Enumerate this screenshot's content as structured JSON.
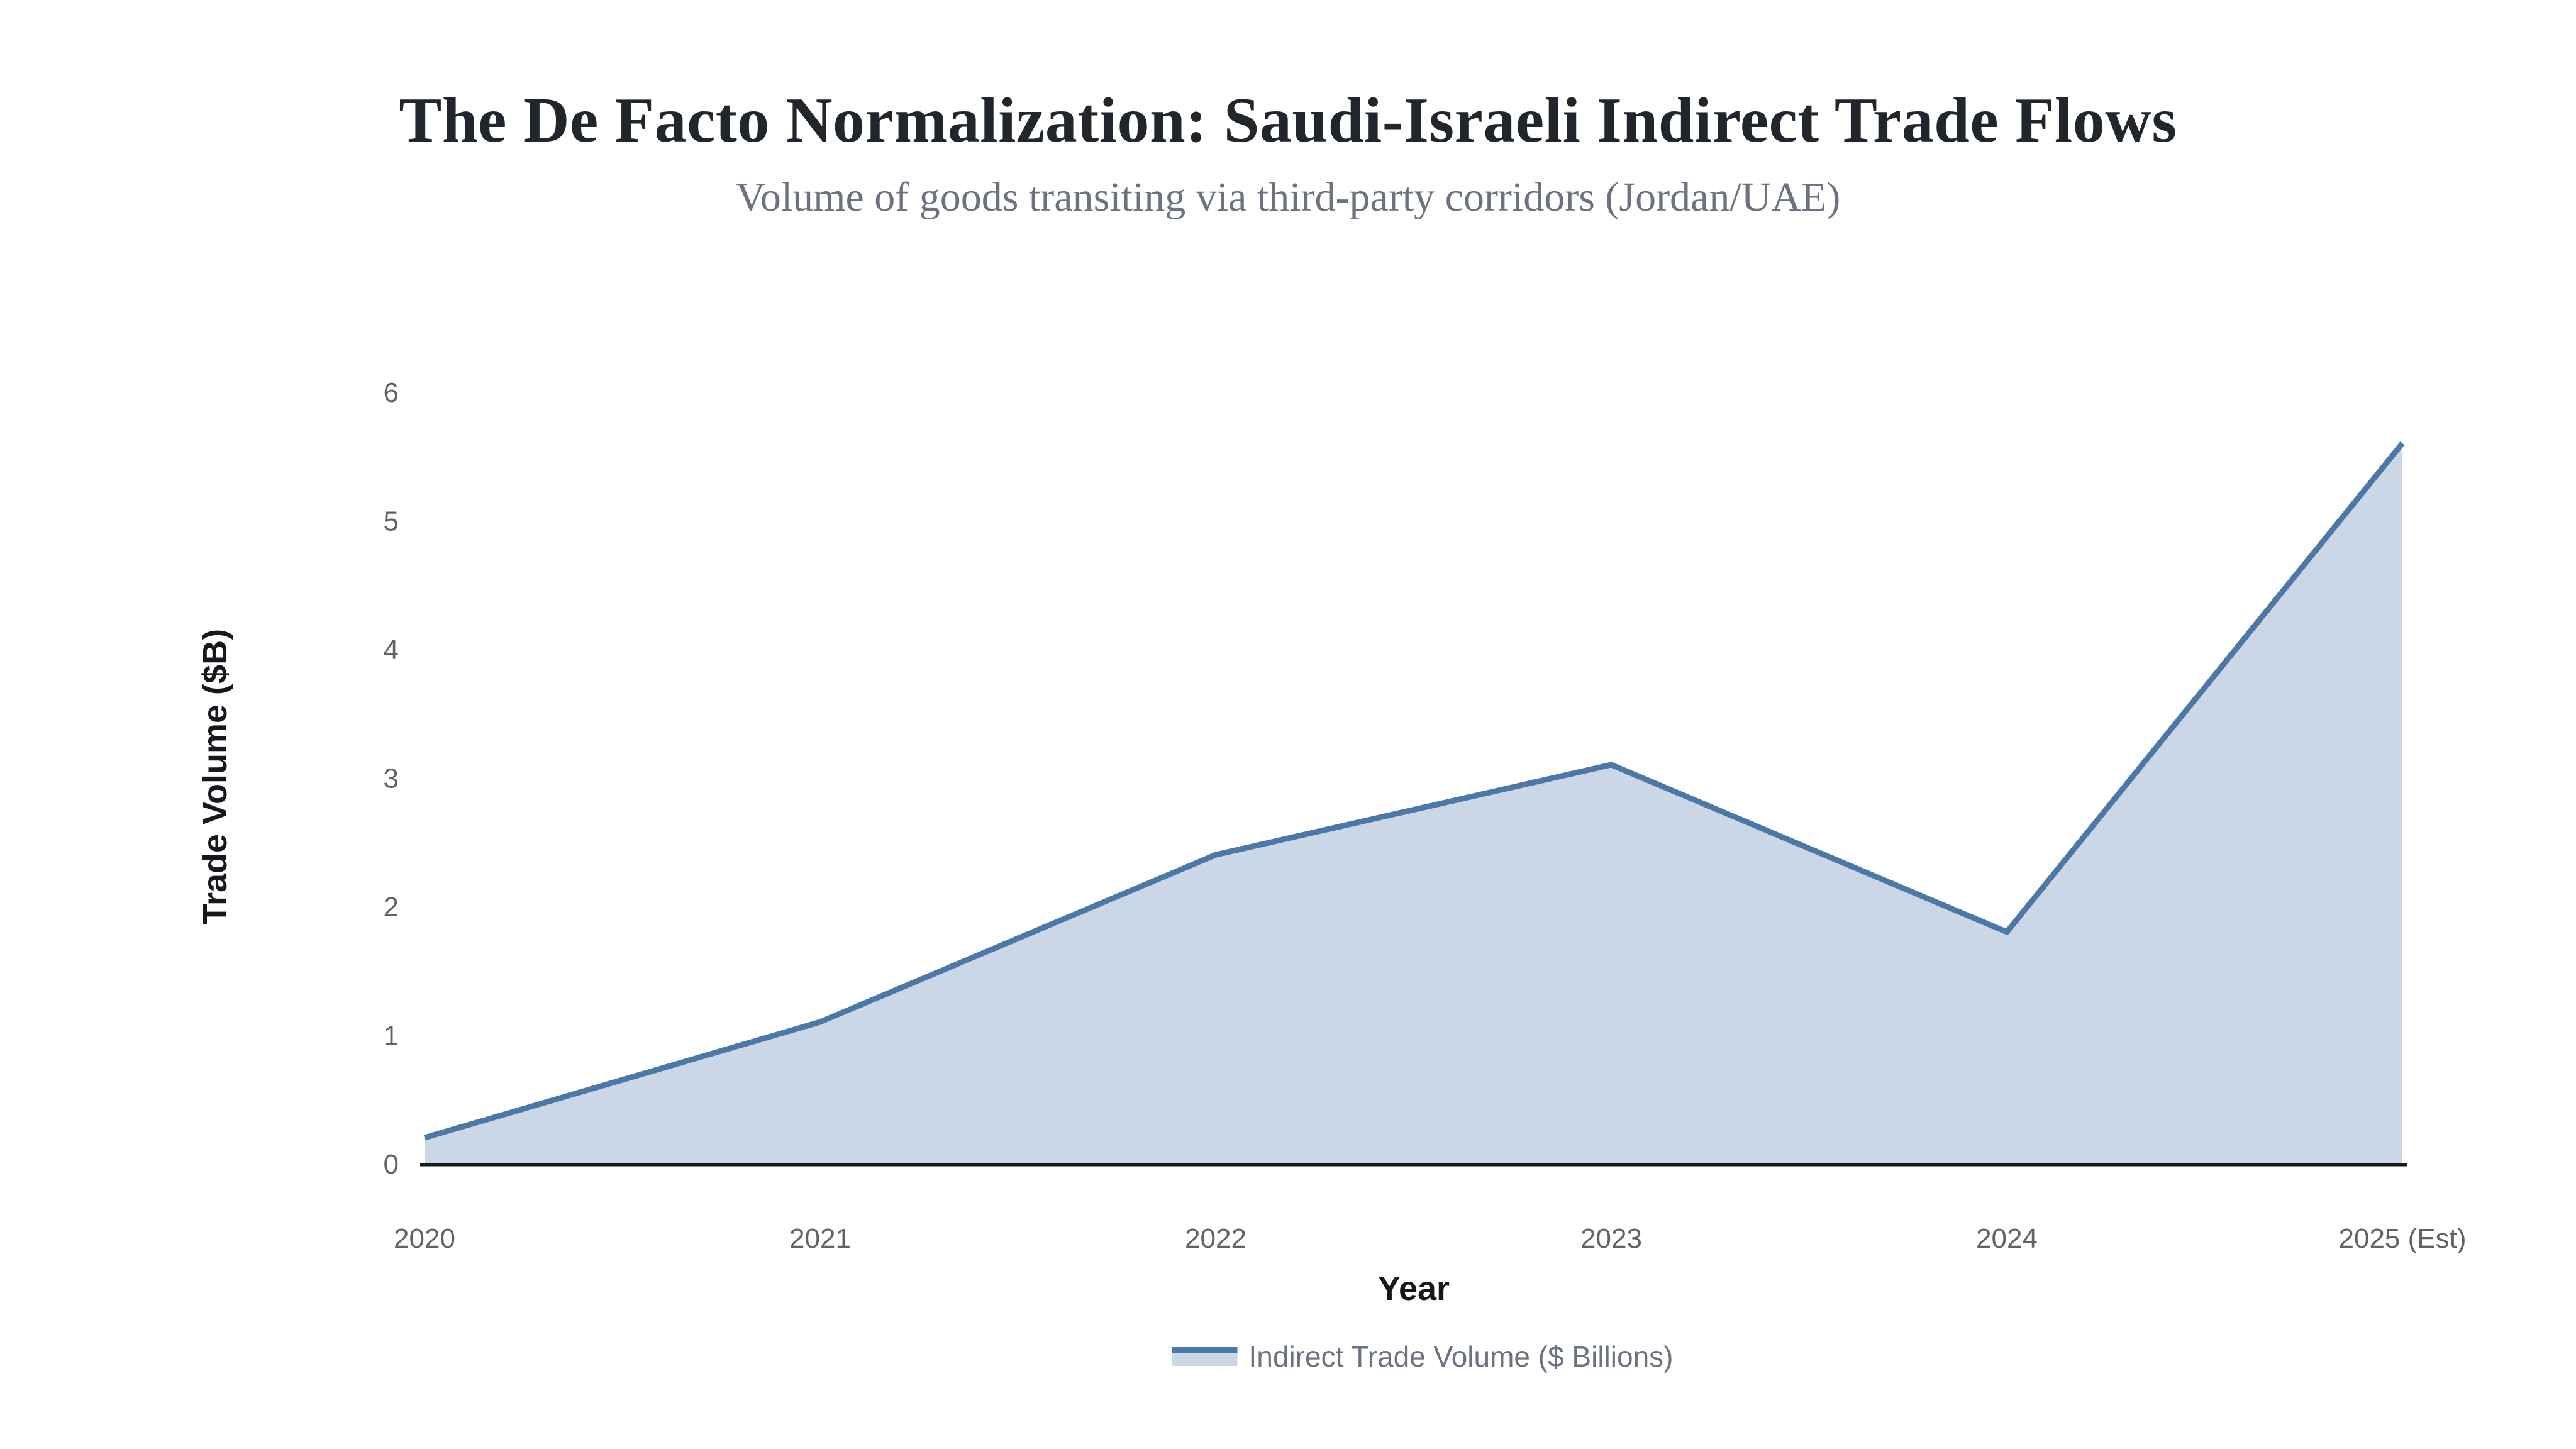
{
  "header": {
    "title": "The De Facto Normalization: Saudi-Israeli Indirect Trade Flows",
    "subtitle": "Volume of goods transiting via third-party corridors (Jordan/UAE)"
  },
  "chart_data": {
    "type": "area",
    "title": "The De Facto Normalization: Saudi-Israeli Indirect Trade Flows",
    "subtitle": "Volume of goods transiting via third-party corridors (Jordan/UAE)",
    "categories": [
      "2020",
      "2021",
      "2022",
      "2023",
      "2024",
      "2025 (Est)"
    ],
    "series": [
      {
        "name": "Indirect Trade Volume ($ Billions)",
        "values": [
          0.2,
          1.1,
          2.4,
          3.1,
          1.8,
          5.6
        ]
      }
    ],
    "xlabel": "Year",
    "ylabel": "Trade Volume ($B)",
    "ylim": [
      0,
      6
    ],
    "yticks": [
      0,
      1,
      2,
      3,
      4,
      5,
      6
    ],
    "grid": false,
    "legend_position": "bottom",
    "colors": {
      "line": "#4c78a8",
      "fill": "#cbd7e6",
      "axis_line": "#1a1a1a",
      "tick_label": "#5f6368"
    }
  }
}
